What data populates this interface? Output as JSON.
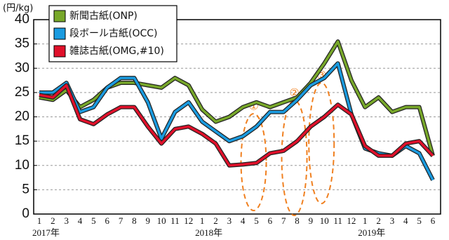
{
  "chart_data": {
    "type": "line",
    "y_unit": "(円/kg)",
    "categories": [
      "1",
      "2",
      "3",
      "4",
      "5",
      "6",
      "7",
      "8",
      "9",
      "10",
      "11",
      "12",
      "1",
      "2",
      "3",
      "4",
      "5",
      "6",
      "7",
      "8",
      "9",
      "10",
      "11",
      "12",
      "1",
      "2",
      "3",
      "4",
      "5",
      "6"
    ],
    "years": [
      "2017年",
      "2018年",
      "2019年"
    ],
    "series": [
      {
        "name": "新聞古紙(ONP)",
        "color": "#78a82a",
        "values": [
          24,
          23.5,
          25.5,
          22,
          23.5,
          26,
          27,
          27,
          26.5,
          26,
          28,
          26.5,
          21.5,
          19,
          20,
          22,
          23,
          22,
          23,
          24,
          27,
          31,
          35.5,
          27.5,
          22,
          24,
          21,
          22,
          22,
          12
        ]
      },
      {
        "name": "段ボール古紙(OCC)",
        "color": "#1a9be0",
        "values": [
          25,
          25,
          27,
          21,
          22,
          26,
          28,
          28,
          23,
          15.5,
          21,
          23,
          19,
          17,
          15,
          16,
          18,
          21,
          21,
          23.5,
          26.5,
          28,
          31,
          20.5,
          13.5,
          12.5,
          12,
          14,
          12.5,
          7
        ]
      },
      {
        "name": "雑誌古紙(OMG,#10)",
        "color": "#e0102a",
        "values": [
          24.5,
          24,
          26.5,
          19.5,
          18.5,
          20.5,
          22,
          22,
          18,
          14.5,
          17.5,
          18,
          16.5,
          14.5,
          10,
          10.2,
          10.5,
          12.5,
          13,
          15,
          18,
          20,
          22.5,
          20.5,
          14,
          12,
          12,
          14.5,
          15,
          12
        ]
      }
    ],
    "annotations": [
      "①",
      "②",
      "③"
    ],
    "ylim": [
      0,
      40
    ],
    "yticks": [
      0,
      5,
      10,
      15,
      20,
      25,
      30,
      35,
      40
    ],
    "grid": true
  }
}
